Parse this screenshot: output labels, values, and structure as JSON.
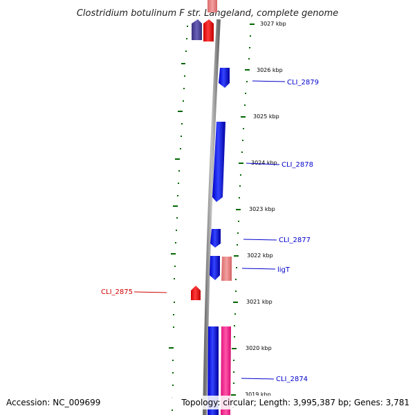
{
  "title": "Clostridium botulinum F str. Langeland, complete genome",
  "footer": {
    "accession": "Accession: NC_009699",
    "topology": "Topology: circular; Length: 3,995,387 bp; Genes: 3,781"
  },
  "scale_labels": [
    "3027 kbp",
    "3026 kbp",
    "3025 kbp",
    "3024 kbp",
    "3023 kbp",
    "3022 kbp",
    "3021 kbp",
    "3020 kbp",
    "3019 kbp"
  ],
  "gene_labels": {
    "cli_2879": "CLI_2879",
    "cli_2878": "CLI_2878",
    "cli_2877": "CLI_2877",
    "ligt": "ligT",
    "cli_2875": "CLI_2875",
    "cli_2874": "CLI_2874"
  },
  "colors": {
    "forward_gene": "#ff0000",
    "reverse_gene": "#0000ff",
    "label_blue": "#0000cc",
    "label_red": "#cc0000",
    "tick": "#006600",
    "backbone": "#888888",
    "purple_gene": "#4b3f9a",
    "salmon_gene": "#e87c7c",
    "pink_gene": "#ff3399"
  }
}
